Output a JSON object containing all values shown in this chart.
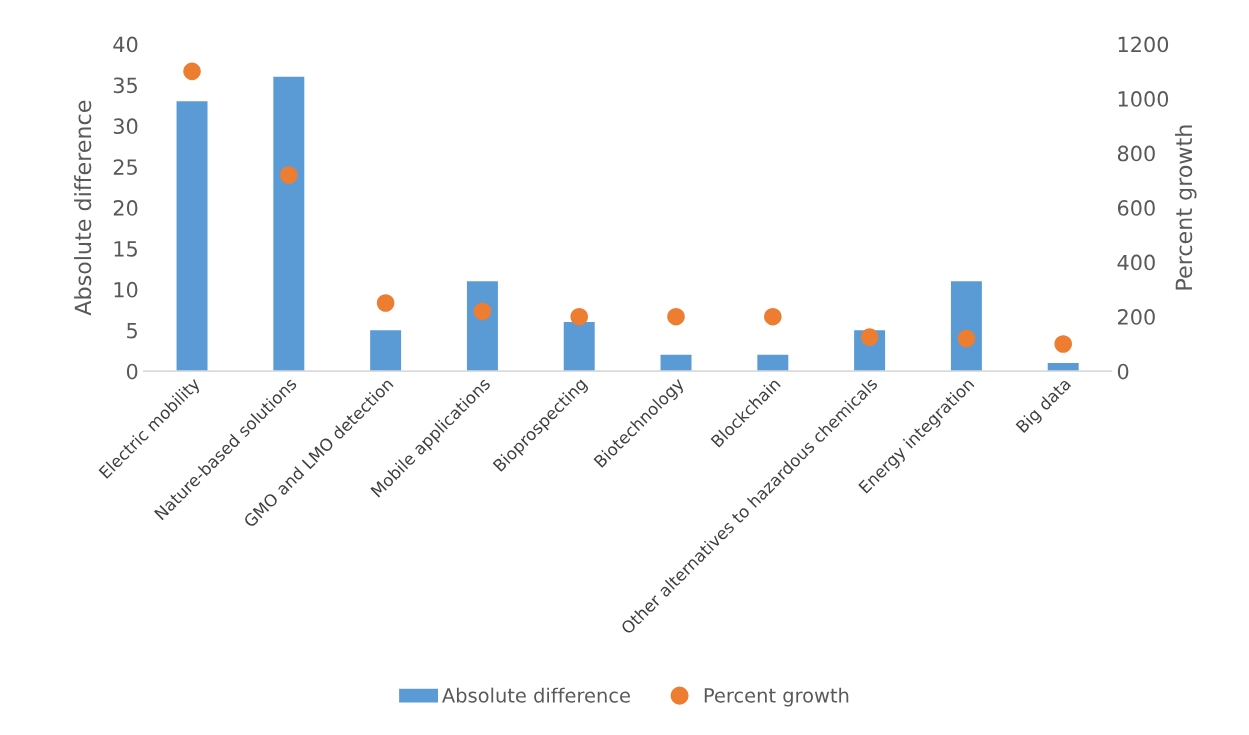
{
  "chart_data": {
    "type": "bar",
    "categories": [
      "Electric mobility",
      "Nature-based solutions",
      "GMO and LMO detection",
      "Mobile applications",
      "Bioprospecting",
      "Biotechnology",
      "Blockchain",
      "Other alternatives to hazardous chemicals",
      "Energy integration",
      "Big data"
    ],
    "series": [
      {
        "name": "Absolute difference",
        "color": "#5b9bd5",
        "values": [
          33,
          36,
          5,
          11,
          6,
          2,
          2,
          5,
          11,
          1
        ]
      },
      {
        "name": "Percent growth",
        "type": "scatter",
        "axis": "y2",
        "color": "#ed7d31",
        "marker": "circle",
        "values": [
          1100,
          720,
          250,
          220,
          200,
          200,
          200,
          125,
          120,
          100
        ]
      }
    ],
    "ylabel": "Absolute difference",
    "y2label": "Percent growth",
    "ylim": [
      0,
      40
    ],
    "yticks": [
      0,
      5,
      10,
      15,
      20,
      25,
      30,
      35,
      40
    ],
    "y2lim": [
      0,
      1200
    ],
    "y2ticks": [
      0,
      200,
      400,
      600,
      800,
      1000,
      1200
    ],
    "grid": false,
    "legend": "bottom"
  }
}
